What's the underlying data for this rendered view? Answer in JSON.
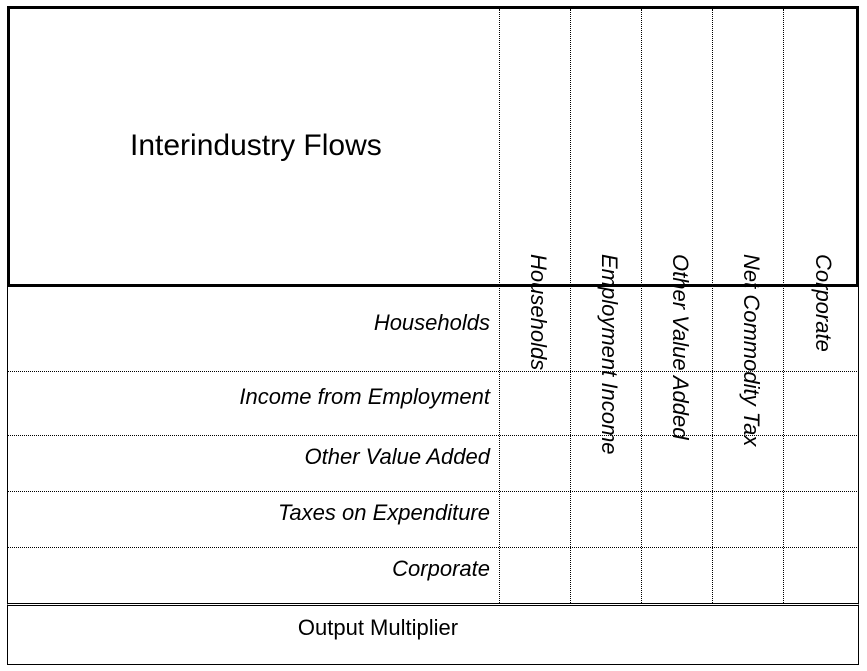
{
  "table": {
    "title": "Interindustry Flows",
    "columns": [
      {
        "label": "Households"
      },
      {
        "label": "Employment Income"
      },
      {
        "label": "Other Value Added"
      },
      {
        "label": "Net Commodity Tax"
      },
      {
        "label": "Corporate"
      }
    ],
    "rows": [
      {
        "label": "Households"
      },
      {
        "label": "Income from Employment"
      },
      {
        "label": "Other Value Added"
      },
      {
        "label": "Taxes on Expenditure"
      },
      {
        "label": "Corporate"
      }
    ],
    "footer": "Output Multiplier"
  }
}
